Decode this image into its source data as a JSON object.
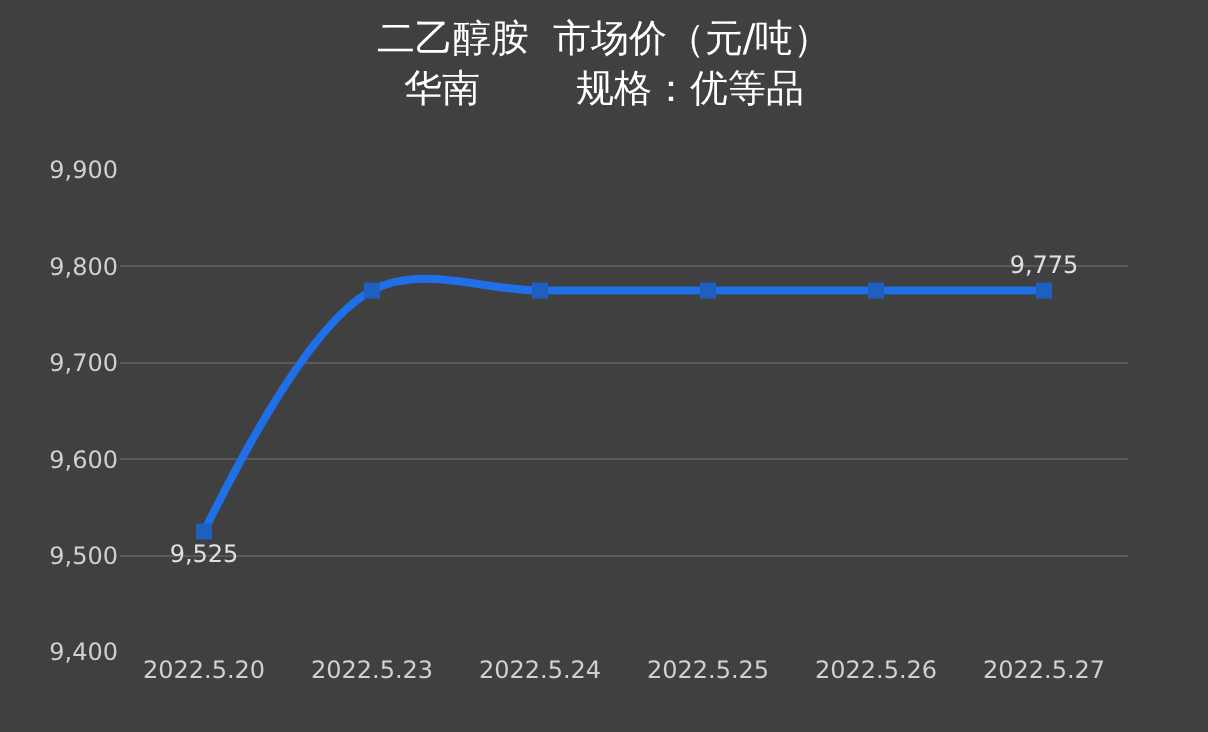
{
  "chart_data": {
    "type": "line",
    "title": "二乙醇胺  市场价（元/吨）",
    "subtitle": "华南        规格：优等品",
    "categories": [
      "2022.5.20",
      "2022.5.23",
      "2022.5.24",
      "2022.5.25",
      "2022.5.26",
      "2022.5.27"
    ],
    "series": [
      {
        "color": "#1f6fe8",
        "values": [
          9525,
          9775,
          9775,
          9775,
          9775,
          9775
        ],
        "value_labels": [
          "9,525",
          null,
          null,
          null,
          null,
          "9,775"
        ]
      }
    ],
    "ylim": [
      9400,
      9900
    ],
    "yticks": [
      {
        "value": 9400,
        "label": "9,400"
      },
      {
        "value": 9500,
        "label": "9,500"
      },
      {
        "value": 9600,
        "label": "9,600"
      },
      {
        "value": 9700,
        "label": "9,700"
      },
      {
        "value": 9800,
        "label": "9,800"
      },
      {
        "value": 9900,
        "label": "9,900"
      }
    ],
    "grid": "y",
    "marker": "square",
    "line_style": "solid",
    "legend": false
  }
}
